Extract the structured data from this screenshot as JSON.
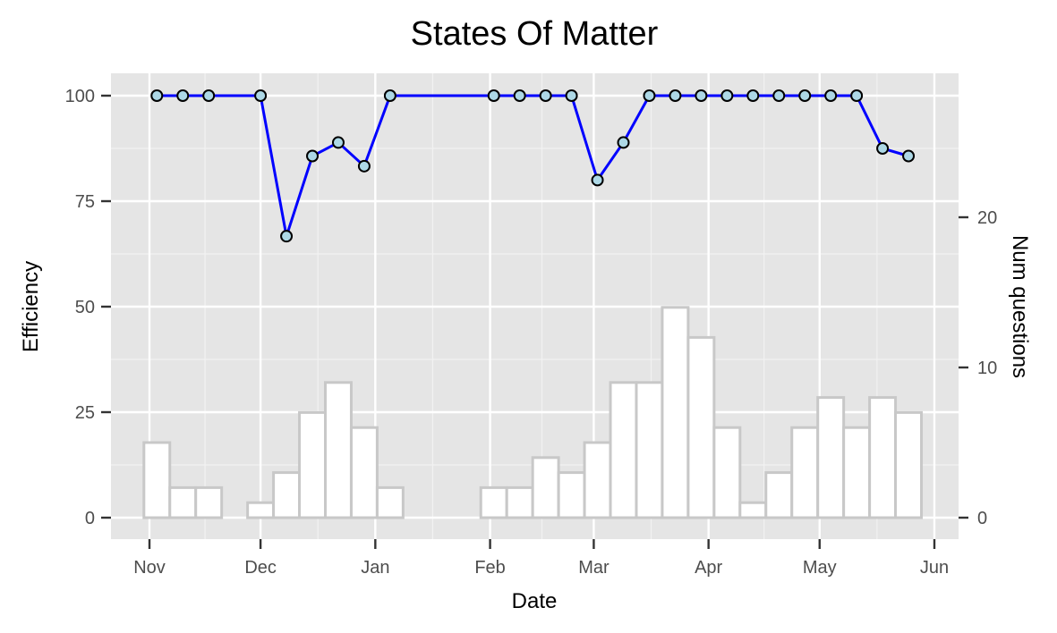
{
  "chart_data": {
    "type": "line",
    "title": "States Of Matter",
    "xlabel": "Date",
    "ylabel": "Efficiency",
    "y2label": "Num questions",
    "x_ticks": [
      "Nov",
      "Dec",
      "Jan",
      "Feb",
      "Mar",
      "Apr",
      "May",
      "Jun"
    ],
    "y_ticks": [
      "0",
      "25",
      "50",
      "75",
      "100"
    ],
    "y2_ticks": [
      "0",
      "10",
      "20"
    ],
    "ylim": [
      -5,
      105
    ],
    "y2lim": [
      0,
      28
    ],
    "grid": true,
    "legend": "none",
    "line_series": {
      "x": [
        "2018-11-03",
        "2018-11-10",
        "2018-11-17",
        "2018-12-01",
        "2018-12-08",
        "2018-12-15",
        "2018-12-22",
        "2018-12-29",
        "2019-01-05",
        "2019-02-02",
        "2019-02-09",
        "2019-02-16",
        "2019-02-23",
        "2019-03-02",
        "2019-03-09",
        "2019-03-16",
        "2019-03-23",
        "2019-03-30",
        "2019-04-06",
        "2019-04-13",
        "2019-04-20",
        "2019-04-27",
        "2019-05-04",
        "2019-05-11",
        "2019-05-18",
        "2019-05-25"
      ],
      "values": [
        100,
        100,
        100,
        100,
        66.7,
        85.7,
        88.9,
        83.3,
        100,
        100,
        100,
        100,
        100,
        80,
        88.9,
        100,
        100,
        100,
        100,
        100,
        100,
        100,
        100,
        100,
        87.5,
        85.7
      ]
    },
    "bar_series": {
      "x": [
        "2018-11-03",
        "2018-11-10",
        "2018-11-17",
        "2018-12-01",
        "2018-12-08",
        "2018-12-15",
        "2018-12-22",
        "2018-12-29",
        "2019-01-05",
        "2019-02-02",
        "2019-02-09",
        "2019-02-16",
        "2019-02-23",
        "2019-03-02",
        "2019-03-09",
        "2019-03-16",
        "2019-03-23",
        "2019-03-30",
        "2019-04-06",
        "2019-04-13",
        "2019-04-20",
        "2019-04-27",
        "2019-05-04",
        "2019-05-11",
        "2019-05-18",
        "2019-05-25"
      ],
      "values": [
        5,
        2,
        2,
        1,
        3,
        7,
        9,
        6,
        2,
        2,
        2,
        4,
        3,
        5,
        9,
        9,
        14,
        12,
        6,
        1,
        3,
        6,
        8,
        6,
        8,
        7
      ]
    },
    "colors": {
      "panel": "#e5e5e5",
      "grid_major": "#ffffff",
      "line": "#0000ff",
      "point_fill": "#add8e6",
      "point_stroke": "#000000",
      "bar_fill": "#ffffff",
      "bar_stroke": "#c8c8c8"
    }
  }
}
